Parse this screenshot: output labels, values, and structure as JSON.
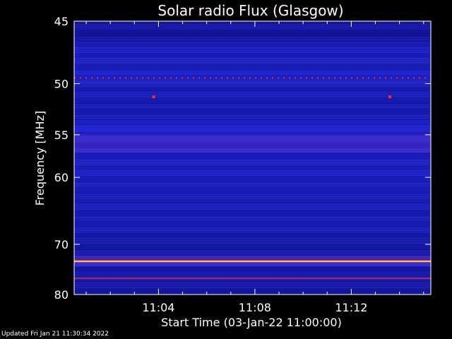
{
  "chart_data": {
    "type": "heatmap",
    "title": "Solar radio Flux (Glasgow)",
    "xlabel": "Start Time (03-Jan-22 11:00:00)",
    "ylabel": "Frequency [MHz]",
    "xlim": [
      0.5,
      15.3
    ],
    "ylim": [
      45,
      80
    ],
    "x_unit": "minutes after 11:00",
    "x_ticks": [
      {
        "value": 4,
        "label": "11:04"
      },
      {
        "value": 8,
        "label": "11:08"
      },
      {
        "value": 12,
        "label": "11:12"
      }
    ],
    "y_ticks": [
      {
        "value": 45,
        "label": "45"
      },
      {
        "value": 50,
        "label": "50"
      },
      {
        "value": 55,
        "label": "55"
      },
      {
        "value": 60,
        "label": "60"
      },
      {
        "value": 70,
        "label": "70"
      },
      {
        "value": 80,
        "label": "80"
      }
    ],
    "y_scale": "reciprocal",
    "frequency_bands": [
      {
        "from": 45,
        "to": 46.5,
        "intensity": 0.15
      },
      {
        "from": 46.5,
        "to": 49,
        "intensity": 0.3
      },
      {
        "from": 49,
        "to": 50,
        "intensity": 0.35
      },
      {
        "from": 50,
        "to": 53.5,
        "intensity": 0.25
      },
      {
        "from": 53.5,
        "to": 55,
        "intensity": 0.35
      },
      {
        "from": 55,
        "to": 57,
        "intensity": 0.5
      },
      {
        "from": 57,
        "to": 62,
        "intensity": 0.3
      },
      {
        "from": 62,
        "to": 68,
        "intensity": 0.25
      },
      {
        "from": 68,
        "to": 72,
        "intensity": 0.2
      },
      {
        "from": 72,
        "to": 72.9,
        "intensity": 0.55
      },
      {
        "from": 72.9,
        "to": 73.3,
        "intensity": 1.0
      },
      {
        "from": 73.3,
        "to": 74,
        "intensity": 0.5
      },
      {
        "from": 74,
        "to": 80,
        "intensity": 0.18
      }
    ],
    "lines": [
      {
        "freq": 49.5,
        "style": "dotted",
        "color": "#ff2a2a"
      },
      {
        "freq": 76.5,
        "style": "solid",
        "color": "#b02a6a"
      }
    ],
    "spots": [
      {
        "time": 3.8,
        "freq": 51.2
      },
      {
        "time": 13.6,
        "freq": 51.2
      }
    ]
  },
  "footer": {
    "updated": "Updated Fri Jan 21 11:30:34 2022"
  }
}
